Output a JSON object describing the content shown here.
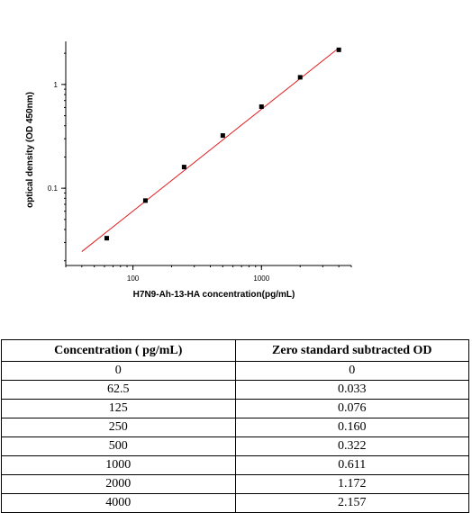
{
  "chart_data": {
    "type": "scatter",
    "xlabel": "H7N9-Ah-13-HA  concentration(pg/mL)",
    "ylabel": "optical density (OD 450nm)",
    "x_scale": "log",
    "y_scale": "log",
    "xlim": [
      30,
      5000
    ],
    "ylim": [
      0.018,
      2.6
    ],
    "x_ticks": [
      {
        "value": 100,
        "label": "100"
      },
      {
        "value": 1000,
        "label": "1000"
      }
    ],
    "y_ticks": [
      {
        "value": 0.1,
        "label": "0.1"
      },
      {
        "value": 1,
        "label": "1"
      }
    ],
    "points": [
      {
        "x": 62.5,
        "y": 0.033
      },
      {
        "x": 125,
        "y": 0.076
      },
      {
        "x": 250,
        "y": 0.16
      },
      {
        "x": 500,
        "y": 0.322
      },
      {
        "x": 1000,
        "y": 0.611
      },
      {
        "x": 2000,
        "y": 1.172
      },
      {
        "x": 4000,
        "y": 2.157
      }
    ],
    "fit_line": {
      "x": [
        40,
        4000
      ],
      "y": [
        0.0245,
        2.25
      ]
    },
    "grid": false,
    "marker_color": "#000000",
    "line_color": "#e41a1c"
  },
  "table": {
    "headers": [
      "Concentration ( pg/mL)",
      "Zero standard subtracted OD"
    ],
    "rows": [
      [
        "0",
        "0"
      ],
      [
        "62.5",
        "0.033"
      ],
      [
        "125",
        "0.076"
      ],
      [
        "250",
        "0.160"
      ],
      [
        "500",
        "0.322"
      ],
      [
        "1000",
        "0.611"
      ],
      [
        "2000",
        "1.172"
      ],
      [
        "4000",
        "2.157"
      ]
    ]
  }
}
